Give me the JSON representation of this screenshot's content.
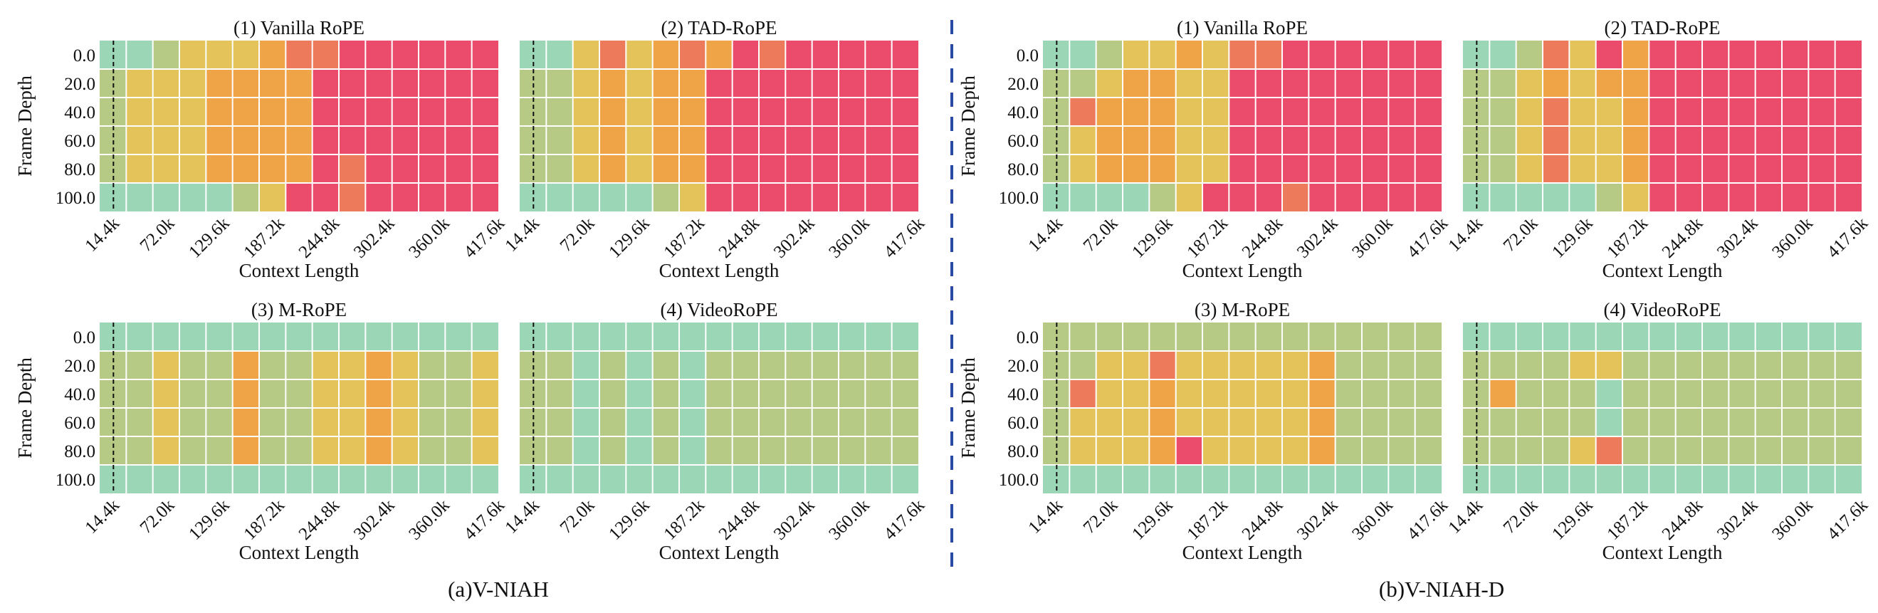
{
  "palette": {
    "0": "#9bd7b7",
    "1": "#b6c985",
    "2": "#e3c35a",
    "3": "#eea447",
    "4": "#ec7a5b",
    "5": "#eb4c6c",
    "divider": "#2a4aa6",
    "grid": "#ffffff",
    "ref_line": "#111111"
  },
  "panel_labels": {
    "left": "(a)V-NIAH",
    "right": "(b)V-NIAH-D"
  },
  "chart_data": [
    {
      "type": "heatmap",
      "group": "a",
      "title": "(1) Vanilla RoPE",
      "xlabel": "Context Length",
      "ylabel": "Frame Depth",
      "x_ticks": [
        "14.4k",
        "72.0k",
        "129.6k",
        "187.2k",
        "244.8k",
        "302.4k",
        "360.0k",
        "417.6k"
      ],
      "y_ticks": [
        "0.0",
        "20.0",
        "40.0",
        "60.0",
        "80.0",
        "100.0"
      ],
      "reference_line_x": "14.4k",
      "z": [
        [
          0,
          0,
          1,
          2,
          2,
          2,
          3,
          4,
          4,
          5,
          5,
          5,
          5,
          5,
          5
        ],
        [
          1,
          2,
          2,
          2,
          3,
          3,
          3,
          3,
          5,
          5,
          5,
          5,
          5,
          5,
          5
        ],
        [
          1,
          2,
          2,
          2,
          3,
          3,
          3,
          3,
          5,
          5,
          5,
          5,
          5,
          5,
          5
        ],
        [
          1,
          2,
          2,
          2,
          3,
          3,
          3,
          3,
          5,
          5,
          5,
          5,
          5,
          5,
          5
        ],
        [
          1,
          2,
          2,
          2,
          3,
          3,
          3,
          3,
          5,
          4,
          5,
          5,
          5,
          5,
          5
        ],
        [
          0,
          0,
          0,
          0,
          0,
          1,
          2,
          5,
          5,
          4,
          5,
          5,
          5,
          5,
          5
        ]
      ]
    },
    {
      "type": "heatmap",
      "group": "a",
      "title": "(2) TAD-RoPE",
      "xlabel": "Context Length",
      "ylabel": "",
      "x_ticks": [
        "14.4k",
        "72.0k",
        "129.6k",
        "187.2k",
        "244.8k",
        "302.4k",
        "360.0k",
        "417.6k"
      ],
      "y_ticks": [],
      "reference_line_x": "14.4k",
      "z": [
        [
          0,
          0,
          2,
          4,
          2,
          3,
          4,
          3,
          5,
          4,
          5,
          5,
          5,
          5,
          5
        ],
        [
          1,
          1,
          2,
          3,
          2,
          3,
          3,
          5,
          5,
          5,
          5,
          5,
          5,
          5,
          5
        ],
        [
          1,
          1,
          2,
          3,
          2,
          3,
          3,
          5,
          5,
          5,
          5,
          5,
          5,
          5,
          5
        ],
        [
          1,
          1,
          2,
          3,
          2,
          3,
          3,
          5,
          5,
          5,
          5,
          5,
          5,
          5,
          5
        ],
        [
          1,
          1,
          2,
          3,
          2,
          3,
          3,
          5,
          5,
          5,
          5,
          5,
          5,
          5,
          5
        ],
        [
          0,
          0,
          0,
          0,
          0,
          1,
          2,
          5,
          5,
          5,
          5,
          5,
          5,
          5,
          5
        ]
      ]
    },
    {
      "type": "heatmap",
      "group": "a",
      "title": "(3) M-RoPE",
      "xlabel": "Context Length",
      "ylabel": "Frame Depth",
      "x_ticks": [
        "14.4k",
        "72.0k",
        "129.6k",
        "187.2k",
        "244.8k",
        "302.4k",
        "360.0k",
        "417.6k"
      ],
      "y_ticks": [
        "0.0",
        "20.0",
        "40.0",
        "60.0",
        "80.0",
        "100.0"
      ],
      "reference_line_x": "14.4k",
      "z": [
        [
          0,
          0,
          0,
          0,
          0,
          0,
          0,
          0,
          0,
          0,
          0,
          0,
          0,
          0,
          0
        ],
        [
          1,
          1,
          2,
          1,
          1,
          3,
          1,
          1,
          2,
          2,
          3,
          2,
          1,
          1,
          2
        ],
        [
          1,
          1,
          2,
          1,
          1,
          3,
          1,
          1,
          2,
          2,
          3,
          2,
          1,
          1,
          2
        ],
        [
          1,
          1,
          2,
          1,
          1,
          3,
          1,
          1,
          2,
          2,
          3,
          2,
          1,
          1,
          2
        ],
        [
          1,
          1,
          2,
          1,
          1,
          3,
          1,
          1,
          2,
          2,
          3,
          2,
          1,
          1,
          2
        ],
        [
          0,
          0,
          0,
          0,
          0,
          0,
          0,
          0,
          0,
          0,
          0,
          0,
          0,
          0,
          0
        ]
      ]
    },
    {
      "type": "heatmap",
      "group": "a",
      "title": "(4) VideoRoPE",
      "xlabel": "Context Length",
      "ylabel": "",
      "x_ticks": [
        "14.4k",
        "72.0k",
        "129.6k",
        "187.2k",
        "244.8k",
        "302.4k",
        "360.0k",
        "417.6k"
      ],
      "y_ticks": [],
      "reference_line_x": "14.4k",
      "z": [
        [
          0,
          0,
          0,
          0,
          0,
          0,
          0,
          0,
          0,
          0,
          0,
          0,
          0,
          0,
          0
        ],
        [
          1,
          1,
          0,
          1,
          0,
          1,
          0,
          1,
          1,
          1,
          1,
          1,
          1,
          1,
          1
        ],
        [
          1,
          1,
          0,
          1,
          0,
          1,
          0,
          1,
          1,
          1,
          1,
          1,
          1,
          1,
          1
        ],
        [
          1,
          1,
          0,
          1,
          0,
          1,
          0,
          1,
          1,
          1,
          1,
          1,
          1,
          1,
          1
        ],
        [
          1,
          1,
          0,
          1,
          0,
          1,
          0,
          1,
          1,
          1,
          1,
          1,
          1,
          1,
          1
        ],
        [
          0,
          0,
          0,
          0,
          0,
          0,
          0,
          0,
          0,
          0,
          0,
          0,
          0,
          0,
          0
        ]
      ]
    },
    {
      "type": "heatmap",
      "group": "b",
      "title": "(1) Vanilla RoPE",
      "xlabel": "Context Length",
      "ylabel": "Frame Depth",
      "x_ticks": [
        "14.4k",
        "72.0k",
        "129.6k",
        "187.2k",
        "244.8k",
        "302.4k",
        "360.0k",
        "417.6k"
      ],
      "y_ticks": [
        "0.0",
        "20.0",
        "40.0",
        "60.0",
        "80.0",
        "100.0"
      ],
      "reference_line_x": "14.4k",
      "z": [
        [
          0,
          0,
          1,
          2,
          2,
          3,
          2,
          4,
          4,
          5,
          5,
          5,
          5,
          5,
          5
        ],
        [
          1,
          1,
          2,
          3,
          3,
          2,
          2,
          5,
          5,
          5,
          5,
          5,
          5,
          5,
          5
        ],
        [
          1,
          4,
          3,
          3,
          3,
          2,
          2,
          5,
          5,
          5,
          5,
          5,
          5,
          5,
          5
        ],
        [
          1,
          2,
          3,
          3,
          3,
          2,
          2,
          5,
          5,
          5,
          5,
          5,
          5,
          5,
          5
        ],
        [
          1,
          2,
          3,
          3,
          3,
          2,
          2,
          5,
          5,
          5,
          5,
          5,
          5,
          5,
          5
        ],
        [
          0,
          0,
          0,
          0,
          1,
          2,
          5,
          5,
          5,
          4,
          5,
          5,
          5,
          5,
          5
        ]
      ]
    },
    {
      "type": "heatmap",
      "group": "b",
      "title": "(2) TAD-RoPE",
      "xlabel": "Context Length",
      "ylabel": "",
      "x_ticks": [
        "14.4k",
        "72.0k",
        "129.6k",
        "187.2k",
        "244.8k",
        "302.4k",
        "360.0k",
        "417.6k"
      ],
      "y_ticks": [],
      "reference_line_x": "14.4k",
      "z": [
        [
          0,
          0,
          1,
          4,
          2,
          5,
          3,
          5,
          5,
          5,
          5,
          5,
          5,
          5,
          5
        ],
        [
          1,
          1,
          2,
          3,
          2,
          3,
          3,
          5,
          5,
          5,
          5,
          5,
          5,
          5,
          5
        ],
        [
          1,
          1,
          2,
          4,
          2,
          2,
          3,
          5,
          5,
          5,
          5,
          5,
          5,
          5,
          5
        ],
        [
          1,
          1,
          2,
          4,
          2,
          2,
          3,
          5,
          5,
          5,
          5,
          5,
          5,
          5,
          5
        ],
        [
          1,
          1,
          2,
          4,
          2,
          2,
          3,
          5,
          5,
          5,
          5,
          5,
          5,
          5,
          5
        ],
        [
          0,
          0,
          0,
          0,
          0,
          1,
          2,
          5,
          5,
          5,
          5,
          5,
          5,
          5,
          5
        ]
      ]
    },
    {
      "type": "heatmap",
      "group": "b",
      "title": "(3) M-RoPE",
      "xlabel": "Context Length",
      "ylabel": "Frame Depth",
      "x_ticks": [
        "14.4k",
        "72.0k",
        "129.6k",
        "187.2k",
        "244.8k",
        "302.4k",
        "360.0k",
        "417.6k"
      ],
      "y_ticks": [
        "0.0",
        "20.0",
        "40.0",
        "60.0",
        "80.0",
        "100.0"
      ],
      "reference_line_x": "14.4k",
      "z": [
        [
          1,
          1,
          1,
          1,
          1,
          1,
          1,
          1,
          1,
          1,
          1,
          1,
          1,
          1,
          1
        ],
        [
          1,
          1,
          2,
          2,
          4,
          2,
          2,
          2,
          2,
          2,
          3,
          1,
          1,
          1,
          1
        ],
        [
          1,
          4,
          2,
          2,
          3,
          2,
          2,
          2,
          2,
          2,
          3,
          1,
          1,
          1,
          1
        ],
        [
          1,
          2,
          2,
          2,
          3,
          2,
          2,
          2,
          2,
          2,
          3,
          1,
          1,
          1,
          1
        ],
        [
          1,
          2,
          2,
          2,
          3,
          5,
          2,
          2,
          2,
          2,
          3,
          1,
          1,
          1,
          1
        ],
        [
          0,
          0,
          0,
          0,
          0,
          0,
          0,
          0,
          0,
          0,
          0,
          0,
          0,
          0,
          0
        ]
      ]
    },
    {
      "type": "heatmap",
      "group": "b",
      "title": "(4) VideoRoPE",
      "xlabel": "Context Length",
      "ylabel": "",
      "x_ticks": [
        "14.4k",
        "72.0k",
        "129.6k",
        "187.2k",
        "244.8k",
        "302.4k",
        "360.0k",
        "417.6k"
      ],
      "y_ticks": [],
      "reference_line_x": "14.4k",
      "z": [
        [
          0,
          0,
          0,
          0,
          0,
          0,
          0,
          0,
          0,
          0,
          0,
          0,
          0,
          0,
          0
        ],
        [
          1,
          1,
          1,
          1,
          2,
          2,
          1,
          1,
          1,
          1,
          1,
          1,
          1,
          1,
          1
        ],
        [
          1,
          3,
          1,
          1,
          1,
          0,
          1,
          1,
          1,
          1,
          1,
          1,
          1,
          1,
          1
        ],
        [
          1,
          1,
          1,
          1,
          1,
          0,
          1,
          1,
          1,
          1,
          1,
          1,
          1,
          1,
          1
        ],
        [
          1,
          1,
          1,
          1,
          2,
          4,
          1,
          1,
          1,
          1,
          1,
          1,
          1,
          1,
          1
        ],
        [
          0,
          0,
          0,
          0,
          0,
          0,
          0,
          0,
          0,
          0,
          0,
          0,
          0,
          0,
          0
        ]
      ]
    }
  ]
}
